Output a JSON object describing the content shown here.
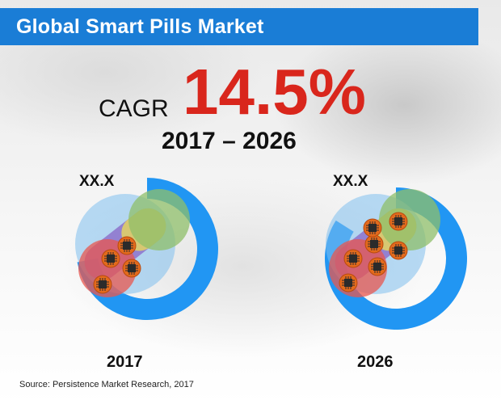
{
  "title": "Global Smart Pills Market",
  "cagr": {
    "label": "CAGR",
    "value": "14.5%",
    "period": "2017 – 2026"
  },
  "chart_data": {
    "type": "pie",
    "title": "Global Smart Pills Market",
    "series": [
      {
        "name": "2017",
        "label": "XX.X",
        "value_fraction": 0.72
      },
      {
        "name": "2026",
        "label": "XX.X",
        "value_fraction": 0.84
      }
    ]
  },
  "source": "Source: Persistence Market Research, 2017",
  "colors": {
    "banner": "#1a7dd6",
    "ring": "#2196f3",
    "cagr": "#d9261c",
    "pill_red": "#e8574f",
    "pill_yellow": "#e8d85a",
    "pill_green": "#8fbf6a",
    "pill_purple": "#8b6cc9",
    "chip": "#e36a1c"
  },
  "icons": [
    "smart-pill-icon",
    "chip-icon"
  ]
}
